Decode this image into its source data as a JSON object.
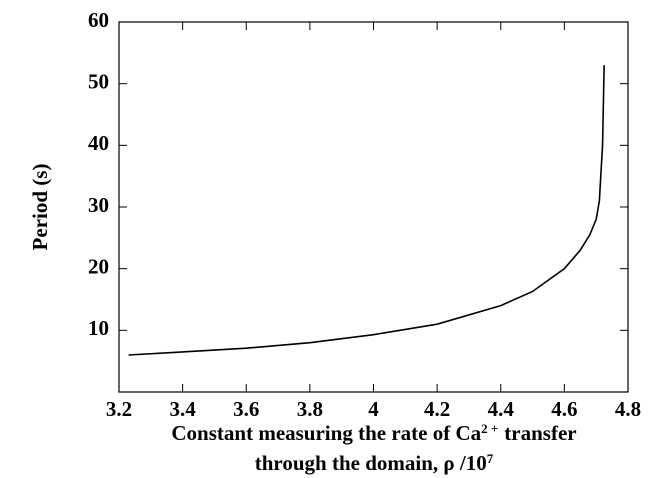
{
  "chart_data": {
    "type": "line",
    "ylabel": "Period  (s)",
    "xlabel": {
      "line1": [
        "Constant measuring the rate of Ca",
        "2 +",
        "transfer"
      ],
      "line2": [
        "through the domain, ρ /10",
        "7"
      ]
    },
    "series": [
      {
        "color": "#000000",
        "x": [
          3.23,
          3.4,
          3.6,
          3.8,
          4.0,
          4.2,
          4.4,
          4.5,
          4.6,
          4.65,
          4.68,
          4.7,
          4.71,
          4.72,
          4.725
        ],
        "values": [
          6.0,
          6.5,
          7.1,
          8.0,
          9.3,
          11.0,
          14.0,
          16.3,
          20.0,
          23.0,
          25.5,
          28.0,
          31.0,
          40.0,
          53.0
        ]
      }
    ],
    "xlim": [
      3.2,
      4.8
    ],
    "xticks": [
      3.2,
      3.4,
      3.6,
      3.8,
      4,
      4.2,
      4.4,
      4.6,
      4.8
    ],
    "ylim": [
      0,
      60
    ],
    "yticks": [
      10,
      20,
      30,
      40,
      50,
      60
    ],
    "grid": false
  }
}
